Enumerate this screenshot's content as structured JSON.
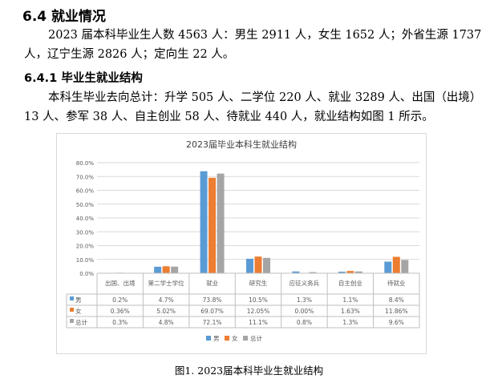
{
  "section": {
    "title": "6.4 就业情况",
    "paragraph1": "2023 届本科毕业生人数 4563 人：男生 2911 人，女生 1652 人；外省生源 1737 人，辽宁生源 2826 人；定向生 22 人。",
    "subtitle": "6.4.1 毕业生就业结构",
    "paragraph2": "本科生毕业去向总计：升学 505 人、二学位 220 人、就业 3289 人、出国（出境）13 人、参军 38 人、自主创业 58 人、待就业 440 人，就业结构如图 1 所示。",
    "caption": "图1. 2023届本科毕业生就业结构"
  },
  "chart_data": {
    "type": "bar",
    "title": "2023届毕业本科生就业结构",
    "categories": [
      "出国、出境",
      "第二学士学位",
      "就业",
      "研究生",
      "应征义务兵",
      "自主创业",
      "待就业"
    ],
    "series": [
      {
        "name": "男",
        "color": "#5b9bd5",
        "values": [
          0.2,
          4.7,
          73.8,
          10.5,
          1.3,
          1.1,
          8.4
        ],
        "labels": [
          "0.2%",
          "4.7%",
          "73.8%",
          "10.5%",
          "1.3%",
          "1.1%",
          "8.4%"
        ]
      },
      {
        "name": "女",
        "color": "#ed7d31",
        "values": [
          0.36,
          5.02,
          69.07,
          12.05,
          0.0,
          1.63,
          11.86
        ],
        "labels": [
          "0.36%",
          "5.02%",
          "69.07%",
          "12.05%",
          "0.00%",
          "1.63%",
          "11.86%"
        ]
      },
      {
        "name": "总计",
        "color": "#a5a5a5",
        "values": [
          0.3,
          4.8,
          72.1,
          11.1,
          0.8,
          1.3,
          9.6
        ],
        "labels": [
          "0.3%",
          "4.8%",
          "72.1%",
          "11.1%",
          "0.8%",
          "1.3%",
          "9.6%"
        ]
      }
    ],
    "ylim": [
      0,
      80
    ],
    "yticks": [
      "0.0%",
      "10.0%",
      "20.0%",
      "30.0%",
      "40.0%",
      "50.0%",
      "60.0%",
      "70.0%",
      "80.0%"
    ],
    "grid": true,
    "legend": "bottom",
    "has_data_table": true
  }
}
